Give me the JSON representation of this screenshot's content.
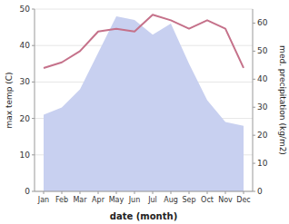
{
  "chart_data": {
    "type": "line",
    "xlabel": "date (month)",
    "ylabel": "max temp (C)",
    "y2label": "med. precipitation (kg/m2)",
    "categories": [
      "Jan",
      "Feb",
      "Mar",
      "Apr",
      "May",
      "Jun",
      "Jul",
      "Aug",
      "Sep",
      "Oct",
      "Nov",
      "Dec"
    ],
    "series": [
      {
        "type": "area",
        "color": "#c8d0f0",
        "values": [
          21,
          23,
          28,
          38,
          48,
          47,
          43,
          46,
          35,
          25,
          19,
          18
        ]
      },
      {
        "type": "line",
        "color": "#c5718a",
        "axis": "y2",
        "values": [
          44,
          46,
          50,
          57,
          58,
          57,
          63,
          61,
          58,
          61,
          58,
          44
        ]
      }
    ],
    "ylim": [
      0,
      50
    ],
    "yticks": [
      0,
      10,
      20,
      30,
      40,
      50
    ],
    "y2lim": [
      0,
      65
    ],
    "y2ticks": [
      0,
      10,
      20,
      30,
      40,
      50,
      60
    ],
    "grid": true
  }
}
